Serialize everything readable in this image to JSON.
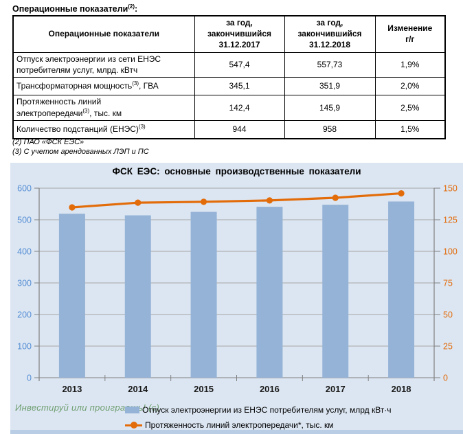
{
  "doc": {
    "title_pre": "Операционные показатели",
    "title_sup": "(2)",
    "title_suffix": ":"
  },
  "table": {
    "headers": {
      "indicator": "Операционные показатели",
      "y2017": "за год,\nзакончившийся\n31.12.2017",
      "y2018": "за год,\nзакончившийся\n31.12.2018",
      "change": "Изменение\nг/г"
    },
    "rows": [
      {
        "pre": "Отпуск электроэнергии из сети ЕНЭС\nпотребителям услуг, млрд. кВтч",
        "sup": "",
        "post": "",
        "v2017": "547,4",
        "v2018": "557,73",
        "change": "1,9%"
      },
      {
        "pre": "Трансформаторная мощность",
        "sup": "(3)",
        "post": ", ГВА",
        "v2017": "345,1",
        "v2018": "351,9",
        "change": "2,0%"
      },
      {
        "pre": "Протяженность линий\nэлектропередачи",
        "sup": "(3)",
        "post": ", тыс. км",
        "v2017": "142,4",
        "v2018": "145,9",
        "change": "2,5%"
      },
      {
        "pre": "Количество подстанций (ЕНЭС)",
        "sup": "(3)",
        "post": "",
        "v2017": "944",
        "v2018": "958",
        "change": "1,5%"
      }
    ]
  },
  "footnotes": [
    "(2) ПАО «ФСК ЕЭС»",
    "(3) С учетом арендованных ЛЭП и ПС"
  ],
  "chart_data": {
    "type": "bar+line",
    "title": "ФСК ЕЭС: основные производственные показатели",
    "categories": [
      "2013",
      "2014",
      "2015",
      "2016",
      "2017",
      "2018"
    ],
    "series": [
      {
        "name": "Отпуск электроэнергии из ЕНЭС потребителям услуг, млрд кВт·ч",
        "type": "bar",
        "axis": "left",
        "color": "#95B3D7",
        "values": [
          519,
          514,
          525,
          541,
          547.4,
          557.73
        ]
      },
      {
        "name": "Протяженность линий электропередачи*, тыс. км",
        "type": "line",
        "axis": "right",
        "color": "#E36C0A",
        "values": [
          134.8,
          138.5,
          139.2,
          140.3,
          142.4,
          145.9
        ]
      }
    ],
    "axes": {
      "left": {
        "min": 0,
        "max": 600,
        "step": 100,
        "label_color": "#558ED5"
      },
      "right": {
        "min": 0,
        "max": 150,
        "step": 25,
        "label_color": "#E26B0A"
      }
    },
    "layout": {
      "grid": true,
      "legend_position": "bottom",
      "plot_bg": "#DCE6F2",
      "grid_color": "#A6A6A6",
      "axis_color": "#808080"
    },
    "watermark": "Инвестируй или проиграешь! (с)"
  }
}
